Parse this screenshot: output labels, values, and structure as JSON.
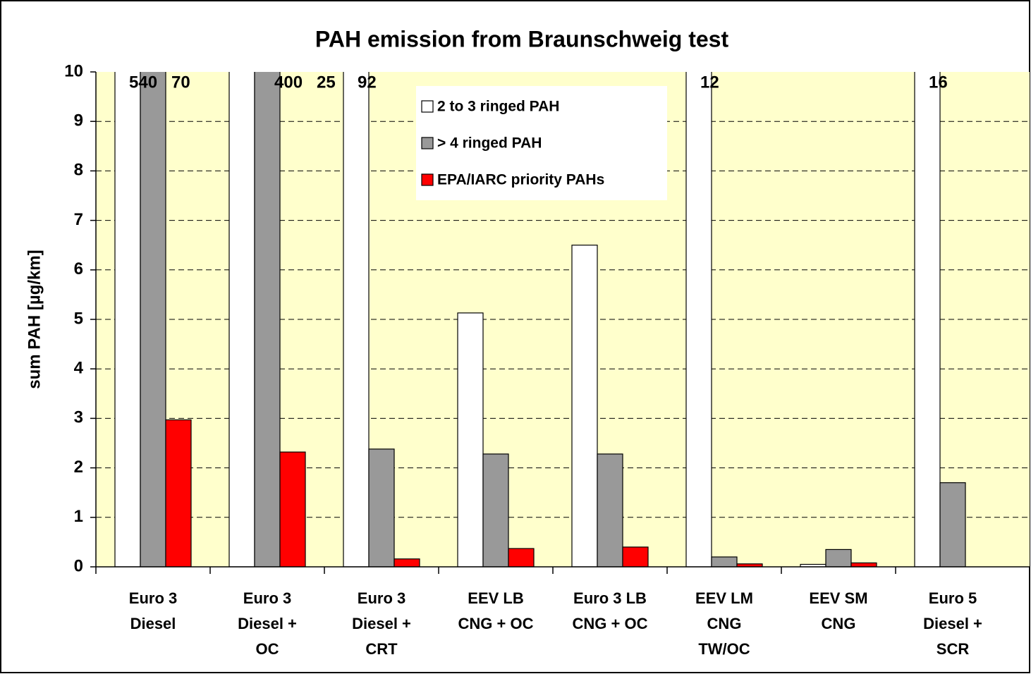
{
  "chart_data": {
    "type": "bar",
    "title": "PAH emission from Braunschweig test",
    "y_label": "sum PAH [µg/km]",
    "categories": [
      [
        "Euro 3",
        "Diesel"
      ],
      [
        "Euro 3",
        "Diesel +",
        "OC"
      ],
      [
        "Euro 3",
        "Diesel +",
        "CRT"
      ],
      [
        "EEV LB",
        "CNG + OC"
      ],
      [
        "Euro 3 LB",
        "CNG + OC"
      ],
      [
        "EEV LM",
        "CNG",
        "TW/OC"
      ],
      [
        "EEV SM",
        "CNG"
      ],
      [
        "Euro 5",
        "Diesel +",
        "SCR"
      ]
    ],
    "series": [
      {
        "name": "2 to 3 ringed PAH",
        "color": "#ffffff",
        "values": [
          540,
          400,
          92,
          5.13,
          6.5,
          12,
          0.05,
          16
        ],
        "value_labels": [
          "540",
          "400",
          "92",
          null,
          null,
          "12",
          null,
          "16"
        ]
      },
      {
        "name": "> 4 ringed PAH",
        "color": "#999999",
        "values": [
          70,
          25,
          2.38,
          2.28,
          2.28,
          0.2,
          0.35,
          1.7
        ],
        "value_labels": [
          "70",
          "25",
          null,
          null,
          null,
          null,
          null,
          null
        ]
      },
      {
        "name": "EPA/IARC priority PAHs",
        "color": "#ff0000",
        "values": [
          2.97,
          2.32,
          0.16,
          0.37,
          0.4,
          0.06,
          0.08,
          null
        ]
      }
    ],
    "ylim": [
      0,
      10
    ],
    "yticks": [
      0,
      1,
      2,
      3,
      4,
      5,
      6,
      7,
      8,
      9,
      10
    ],
    "grid": true,
    "background": "#ffffcc",
    "legend": "top"
  }
}
